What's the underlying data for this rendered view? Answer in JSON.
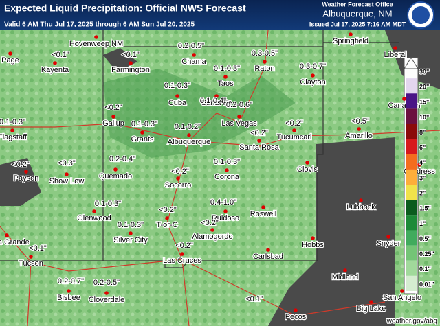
{
  "header": {
    "title": "Expected Liquid Precipitation: Official NWS Forecast",
    "valid": "Valid 6 AM Thu Jul 17, 2025 through 6 AM Sun Jul 20, 2025",
    "office_label": "Weather Forecast Office",
    "office": "Albuquerque, NM",
    "issued": "Issued Jul 17, 2025 7:16 AM MDT"
  },
  "footer": "weather.gov/abq",
  "cities": [
    {
      "name": "Page"
    },
    {
      "name": "Kayenta"
    },
    {
      "name": "Hovenweep NM"
    },
    {
      "name": "Farmington"
    },
    {
      "name": "Chama"
    },
    {
      "name": "Springfield"
    },
    {
      "name": "Liberal"
    },
    {
      "name": "Raton"
    },
    {
      "name": "Taos"
    },
    {
      "name": "Clayton"
    },
    {
      "name": "Cuba"
    },
    {
      "name": "Santa Fe"
    },
    {
      "name": "Las Vegas"
    },
    {
      "name": "Gallup"
    },
    {
      "name": "Grants"
    },
    {
      "name": "Albuquerque"
    },
    {
      "name": "Tucumcari"
    },
    {
      "name": "Santa Rosa"
    },
    {
      "name": "Amarillo"
    },
    {
      "name": "Flagstaff"
    },
    {
      "name": "Payson"
    },
    {
      "name": "Show Low"
    },
    {
      "name": "Quemado"
    },
    {
      "name": "Socorro"
    },
    {
      "name": "Corona"
    },
    {
      "name": "Clovis"
    },
    {
      "name": "Lubbock"
    },
    {
      "name": "Roswell"
    },
    {
      "name": "Ruidoso"
    },
    {
      "name": "Glenwood"
    },
    {
      "name": "T-or-C"
    },
    {
      "name": "Silver City"
    },
    {
      "name": "Alamogordo"
    },
    {
      "name": "Hobbs"
    },
    {
      "name": "Carlsbad"
    },
    {
      "name": "Snyder"
    },
    {
      "name": "Casa Grande"
    },
    {
      "name": "Tucson"
    },
    {
      "name": "Las Cruces"
    },
    {
      "name": "Midland"
    },
    {
      "name": "Bisbee"
    },
    {
      "name": "Cloverdale"
    },
    {
      "name": "Pecos"
    },
    {
      "name": "Big Lake"
    },
    {
      "name": "San Angelo"
    },
    {
      "name": "Canadian"
    },
    {
      "name": "Childress"
    }
  ],
  "amounts": [
    {
      "text": "<0.1\""
    },
    {
      "text": "<0.1\""
    },
    {
      "text": "0.2-0.5\""
    },
    {
      "text": "0.3-0.5\""
    },
    {
      "text": "0.1-0.3\""
    },
    {
      "text": "0.3-0.7\""
    },
    {
      "text": "0.1-0.3\""
    },
    {
      "text": "0.1-0.4\""
    },
    {
      "text": "0.2-0.6\""
    },
    {
      "text": "<0.2\""
    },
    {
      "text": "0.1-0.3\""
    },
    {
      "text": "0.1-0.2\""
    },
    {
      "text": "<0.2\""
    },
    {
      "text": "<0.2\""
    },
    {
      "text": "<0.5\""
    },
    {
      "text": "0.1-0.3\""
    },
    {
      "text": "<0.2\""
    },
    {
      "text": "<0.3\""
    },
    {
      "text": "0.2-0.4\""
    },
    {
      "text": "<0.2\""
    },
    {
      "text": "0.1-0.3\""
    },
    {
      "text": "0.4-1.0\""
    },
    {
      "text": "0.1-0.3\""
    },
    {
      "text": "<0.2\""
    },
    {
      "text": "0.1-0.3\""
    },
    {
      "text": "<0.2\""
    },
    {
      "text": "<0.2\""
    },
    {
      "text": "<0.1\""
    },
    {
      "text": "0.2-0.7\""
    },
    {
      "text": "0.2-0.5\""
    },
    {
      "text": "<0.1\""
    }
  ],
  "legend": [
    {
      "label": "30\"",
      "color": "#fdfdfd"
    },
    {
      "label": "20\"",
      "color": "#e3d6ef"
    },
    {
      "label": "15\"",
      "color": "#4a1486"
    },
    {
      "label": "10\"",
      "color": "#6b0f3f"
    },
    {
      "label": "8\"",
      "color": "#8b0a0a"
    },
    {
      "label": "6\"",
      "color": "#d7191c"
    },
    {
      "label": "4\"",
      "color": "#f46d1e"
    },
    {
      "label": "3\"",
      "color": "#fdae3a"
    },
    {
      "label": "2\"",
      "color": "#f0e24a"
    },
    {
      "label": "1.5\"",
      "color": "#0b5c1e"
    },
    {
      "label": "1\"",
      "color": "#1d8a37"
    },
    {
      "label": "0.5\"",
      "color": "#41ab5d"
    },
    {
      "label": "0.25\"",
      "color": "#74c476"
    },
    {
      "label": "0.1\"",
      "color": "#a1d99b"
    },
    {
      "label": "0.01\"",
      "color": "#d5ecd0"
    }
  ]
}
